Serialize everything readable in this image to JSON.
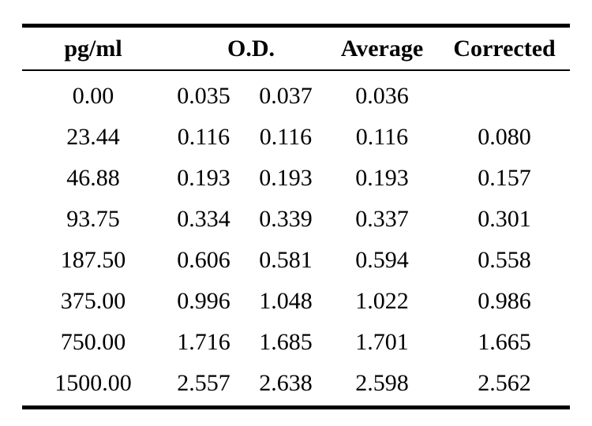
{
  "table": {
    "headers": {
      "concentration": "pg/ml",
      "od": "O.D.",
      "average": "Average",
      "corrected": "Corrected"
    },
    "rows": [
      {
        "concentration": "0.00",
        "od1": "0.035",
        "od2": "0.037",
        "average": "0.036",
        "corrected": ""
      },
      {
        "concentration": "23.44",
        "od1": "0.116",
        "od2": "0.116",
        "average": "0.116",
        "corrected": "0.080"
      },
      {
        "concentration": "46.88",
        "od1": "0.193",
        "od2": "0.193",
        "average": "0.193",
        "corrected": "0.157"
      },
      {
        "concentration": "93.75",
        "od1": "0.334",
        "od2": "0.339",
        "average": "0.337",
        "corrected": "0.301"
      },
      {
        "concentration": "187.50",
        "od1": "0.606",
        "od2": "0.581",
        "average": "0.594",
        "corrected": "0.558"
      },
      {
        "concentration": "375.00",
        "od1": "0.996",
        "od2": "1.048",
        "average": "1.022",
        "corrected": "0.986"
      },
      {
        "concentration": "750.00",
        "od1": "1.716",
        "od2": "1.685",
        "average": "1.701",
        "corrected": "1.665"
      },
      {
        "concentration": "1500.00",
        "od1": "2.557",
        "od2": "2.638",
        "average": "2.598",
        "corrected": "2.562"
      }
    ]
  }
}
